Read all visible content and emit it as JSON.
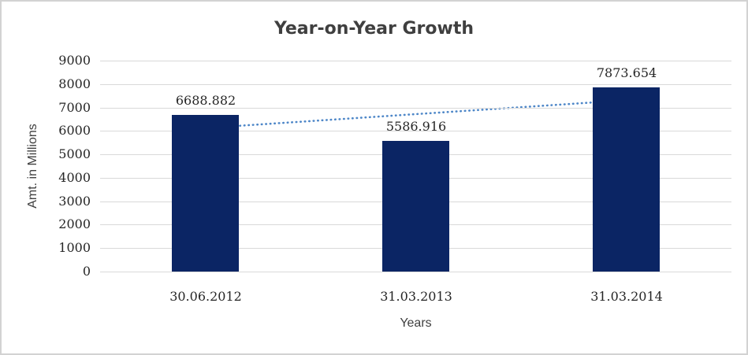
{
  "chart": {
    "title": "Year-on-Year Growth",
    "x_axis_title": "Years",
    "y_axis_title": "Amt. in Millions"
  },
  "chart_data": {
    "type": "bar",
    "title": "Year-on-Year Growth",
    "xlabel": "Years",
    "ylabel": "Amt. in Millions",
    "categories": [
      "30.06.2012",
      "31.03.2013",
      "31.03.2014"
    ],
    "values": [
      6688.882,
      5586.916,
      7873.654
    ],
    "data_labels": [
      "6688.882",
      "5586.916",
      "7873.654"
    ],
    "ylim": [
      0,
      9000
    ],
    "y_tick_step": 1000,
    "grid": true,
    "legend": false,
    "bar_color": "#0b2564",
    "gridline_color": "#d9d9d9",
    "tick_label_color": "#262626",
    "title_color": "#3f3f3f",
    "axis_title_color": "#404040",
    "trendline": {
      "type": "linear",
      "style": "dotted",
      "color": "#4e87c8"
    }
  }
}
